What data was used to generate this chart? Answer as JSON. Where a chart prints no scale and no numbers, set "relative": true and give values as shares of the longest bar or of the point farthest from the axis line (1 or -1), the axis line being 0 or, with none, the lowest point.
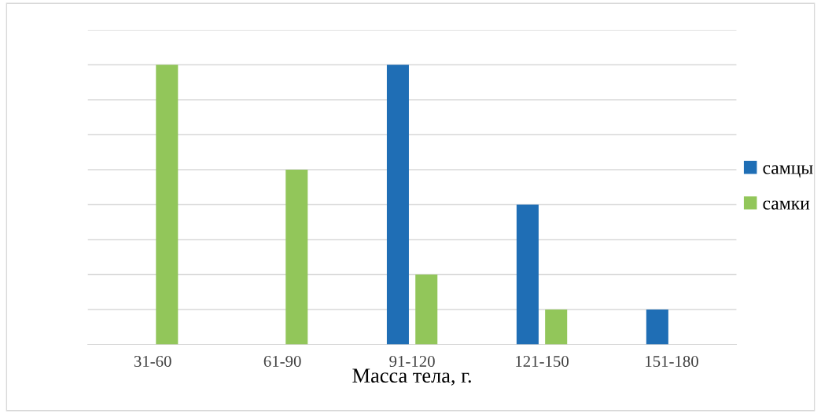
{
  "chart_data": {
    "type": "bar",
    "xlabel": "Масса тела, г.",
    "relative": true,
    "categories": [
      "31-60",
      "61-90",
      "91-120",
      "121-150",
      "151-180"
    ],
    "series": [
      {
        "name": "самцы",
        "color": "#1f6eb5",
        "values": [
          0,
          0,
          1,
          0.5,
          0.125
        ]
      },
      {
        "name": "самки",
        "color": "#92c65a",
        "values": [
          1,
          0.625,
          0.25,
          0.125,
          0
        ]
      }
    ],
    "grid": "y",
    "legend": "right"
  }
}
